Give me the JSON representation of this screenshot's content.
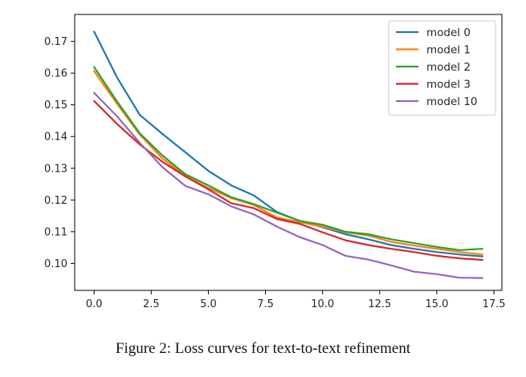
{
  "caption": "Figure 2: Loss curves for text-to-text refinement",
  "chart_data": {
    "type": "line",
    "title": "",
    "xlabel": "",
    "ylabel": "",
    "xlim": [
      -0.85,
      17.85
    ],
    "ylim": [
      0.0915,
      0.1785
    ],
    "xticks": [
      0.0,
      2.5,
      5.0,
      7.5,
      10.0,
      12.5,
      15.0,
      17.5
    ],
    "xtick_labels": [
      "0.0",
      "2.5",
      "5.0",
      "7.5",
      "10.0",
      "12.5",
      "15.0",
      "17.5"
    ],
    "yticks": [
      0.1,
      0.11,
      0.12,
      0.13,
      0.14,
      0.15,
      0.16,
      0.17
    ],
    "ytick_labels": [
      "0.10",
      "0.11",
      "0.12",
      "0.13",
      "0.14",
      "0.15",
      "0.16",
      "0.17"
    ],
    "grid": false,
    "legend_position": "top-right",
    "x": [
      0,
      1,
      2,
      3,
      4,
      5,
      6,
      7,
      8,
      9,
      10,
      11,
      12,
      13,
      14,
      15,
      16,
      17
    ],
    "series": [
      {
        "name": "model 0",
        "color": "#1f77b4",
        "values": [
          0.1731,
          0.1587,
          0.1468,
          0.1408,
          0.135,
          0.1292,
          0.1246,
          0.1214,
          0.1162,
          0.1134,
          0.1114,
          0.1092,
          0.1076,
          0.1058,
          0.1046,
          0.1036,
          0.1028,
          0.1022
        ]
      },
      {
        "name": "model 1",
        "color": "#ff7f0e",
        "values": [
          0.1606,
          0.1504,
          0.1406,
          0.133,
          0.1276,
          0.1238,
          0.1206,
          0.1184,
          0.1145,
          0.113,
          0.1116,
          0.1098,
          0.1088,
          0.1068,
          0.1056,
          0.1046,
          0.1036,
          0.1028
        ]
      },
      {
        "name": "model 2",
        "color": "#2ca02c",
        "values": [
          0.1619,
          0.1511,
          0.141,
          0.134,
          0.1281,
          0.1246,
          0.1209,
          0.1187,
          0.116,
          0.1134,
          0.1122,
          0.11,
          0.1092,
          0.1076,
          0.1064,
          0.1052,
          0.1042,
          0.1046
        ]
      },
      {
        "name": "model 3",
        "color": "#d62728",
        "values": [
          0.1512,
          0.144,
          0.1375,
          0.132,
          0.1274,
          0.1234,
          0.119,
          0.1174,
          0.114,
          0.1125,
          0.1098,
          0.1073,
          0.1058,
          0.1046,
          0.1036,
          0.1024,
          0.1016,
          0.1011
        ]
      },
      {
        "name": "model 10",
        "color": "#9467bd",
        "values": [
          0.1538,
          0.1464,
          0.138,
          0.1303,
          0.1244,
          0.1218,
          0.118,
          0.1154,
          0.1116,
          0.1083,
          0.1058,
          0.1024,
          0.1012,
          0.0994,
          0.0974,
          0.0966,
          0.0955,
          0.0954
        ]
      }
    ]
  }
}
